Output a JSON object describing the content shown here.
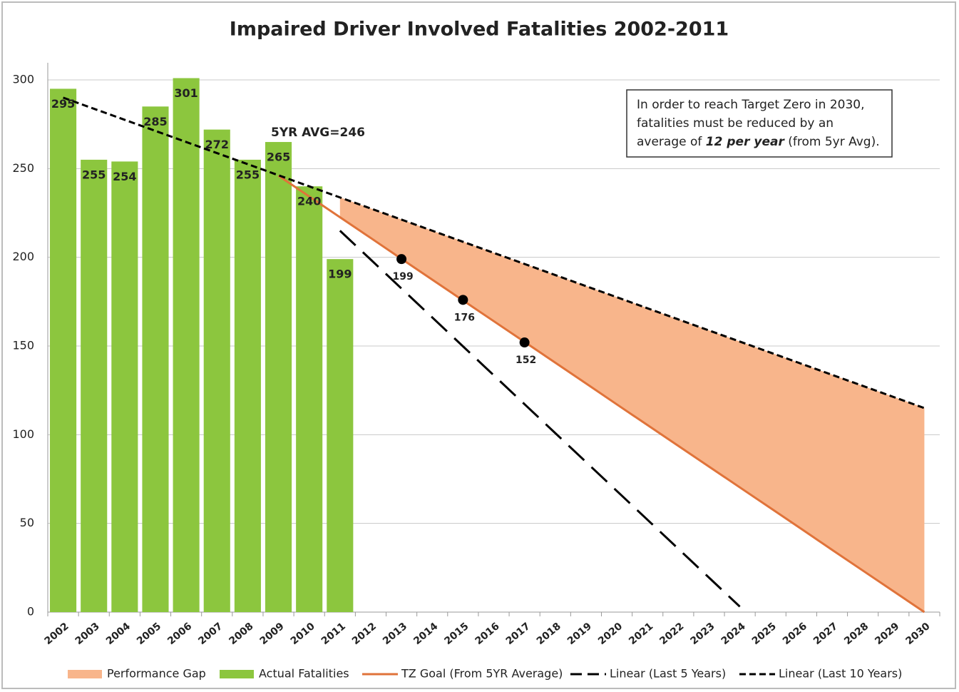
{
  "chart_data": {
    "type": "bar",
    "title": "Impaired Driver Involved Fatalities 2002-2011",
    "categories": [
      "2002",
      "2003",
      "2004",
      "2005",
      "2006",
      "2007",
      "2008",
      "2009",
      "2010",
      "2011",
      "2012",
      "2013",
      "2014",
      "2015",
      "2016",
      "2017",
      "2018",
      "2019",
      "2020",
      "2021",
      "2022",
      "2023",
      "2024",
      "2025",
      "2026",
      "2027",
      "2028",
      "2029",
      "2030"
    ],
    "ylim": [
      0,
      300
    ],
    "yticks": [
      0,
      50,
      100,
      150,
      200,
      250,
      300
    ],
    "grid": true,
    "legend": "bottom",
    "series": [
      {
        "name": "Performance Gap",
        "type": "area",
        "color": "#f8b58b",
        "values": [
          null,
          null,
          null,
          null,
          null,
          null,
          null,
          null,
          null,
          11.2,
          16.6,
          22.2,
          27.6,
          33.1,
          38.5,
          44.0,
          49.4,
          54.9,
          60.4,
          65.9,
          71.3,
          76.8,
          82.2,
          87.7,
          93.1,
          98.7,
          104.1,
          109.6,
          115
        ]
      },
      {
        "name": "Actual Fatalities",
        "type": "bar",
        "color": "#8cc63e",
        "values": [
          295,
          255,
          254,
          285,
          301,
          272,
          255,
          265,
          240,
          199,
          null,
          null,
          null,
          null,
          null,
          null,
          null,
          null,
          null,
          null,
          null,
          null,
          null,
          null,
          null,
          null,
          null,
          null,
          null
        ]
      },
      {
        "name": "TZ Goal (From 5YR Average)",
        "type": "line",
        "color": "#e0733a",
        "dash": "solid",
        "values": [
          null,
          null,
          null,
          null,
          null,
          null,
          null,
          246,
          234.3,
          222.6,
          210.9,
          199.1,
          187.4,
          175.7,
          164.0,
          152.3,
          140.6,
          128.9,
          117.1,
          105.4,
          93.7,
          82.0,
          70.3,
          58.6,
          46.9,
          35.1,
          23.4,
          11.7,
          0
        ]
      },
      {
        "name": "Linear (Last 5 Years)",
        "type": "line",
        "color": "#000000",
        "dash": "long",
        "values": [
          null,
          null,
          null,
          null,
          null,
          null,
          null,
          null,
          null,
          215,
          198.7,
          182.4,
          166.1,
          149.8,
          133.5,
          117.2,
          100.9,
          84.6,
          68.3,
          52.0,
          35.7,
          19.4,
          3.1,
          null,
          null,
          null,
          null,
          null,
          null
        ]
      },
      {
        "name": "Linear (Last 10 Years)",
        "type": "line",
        "color": "#000000",
        "dash": "short",
        "values": [
          290,
          283.75,
          277.5,
          271.25,
          265,
          258.75,
          252.5,
          246.25,
          240,
          233.75,
          227.5,
          221.25,
          215,
          208.75,
          202.5,
          196.25,
          190,
          183.75,
          177.5,
          171.25,
          165,
          158.75,
          152.5,
          146.25,
          140,
          133.75,
          127.5,
          121.25,
          115
        ]
      }
    ],
    "goal_points": {
      "categories": [
        "2013",
        "2015",
        "2017"
      ],
      "values": [
        199,
        176,
        152
      ]
    },
    "annotation": "5YR AVG=246",
    "note_lines": [
      "In order to reach Target Zero in 2030,",
      "fatalities must be reduced by an",
      "average of "
    ],
    "note_emphasis": "12 per year",
    "note_tail": " (from 5yr Avg)."
  }
}
